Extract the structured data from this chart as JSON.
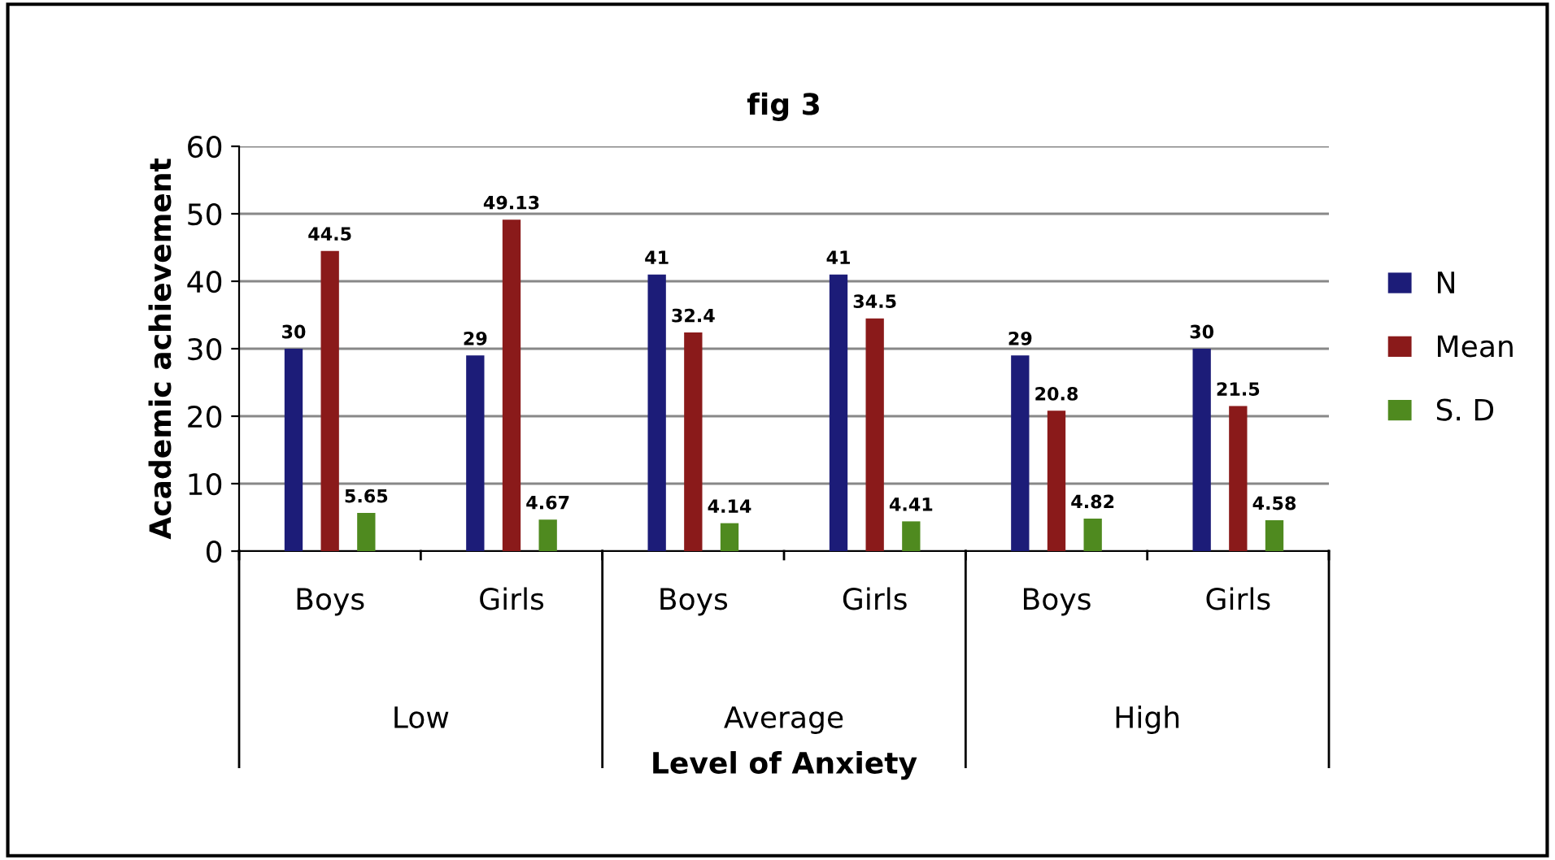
{
  "chart_data": {
    "type": "bar",
    "title": "fig 3",
    "xlabel": "Level of Anxiety",
    "ylabel": "Academic achievement",
    "categories": [
      "Boys",
      "Girls",
      "Boys",
      "Girls",
      "Boys",
      "Girls"
    ],
    "annotations": [
      "Low",
      "Average",
      "High"
    ],
    "series": [
      {
        "name": "N",
        "color": "#1c1c78",
        "values": [
          30,
          29,
          41,
          41,
          29,
          30
        ]
      },
      {
        "name": "Mean",
        "color": "#8a1a1a",
        "values": [
          44.5,
          49.13,
          32.4,
          34.5,
          20.8,
          21.5
        ]
      },
      {
        "name": "S. D",
        "color": "#4f8a1f",
        "values": [
          5.65,
          4.67,
          4.14,
          4.41,
          4.82,
          4.58
        ]
      }
    ],
    "ylim": [
      0,
      60
    ],
    "yticks": [
      0,
      10,
      20,
      30,
      40,
      50,
      60
    ],
    "grid": "y",
    "legend": "right",
    "data_labels": true
  }
}
